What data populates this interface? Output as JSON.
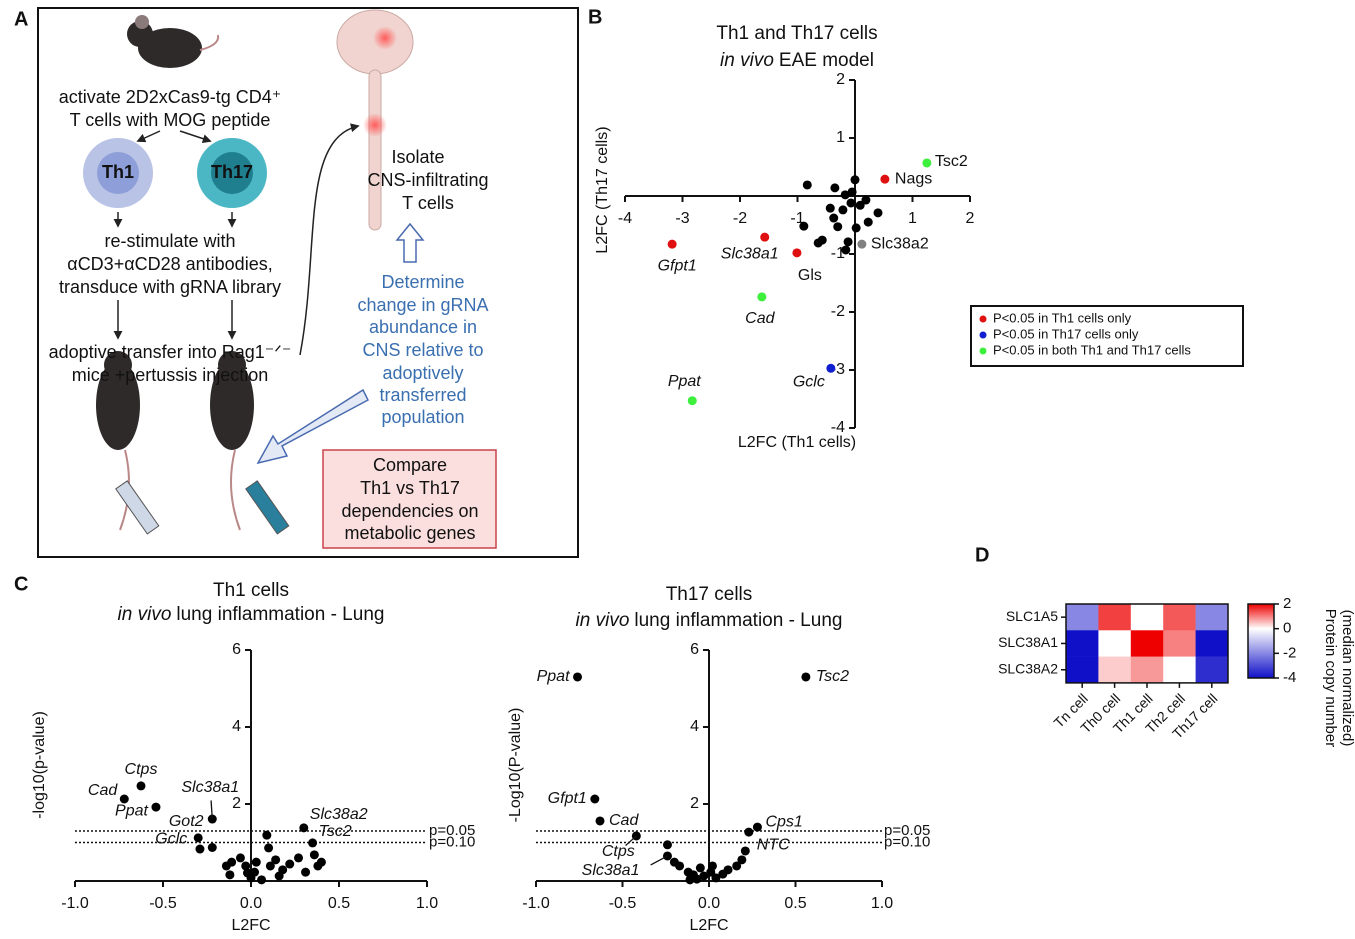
{
  "panel_labels": [
    "A",
    "B",
    "C",
    "D"
  ],
  "diagram": {
    "activate": [
      "activate 2D2xCas9-tg CD4⁺",
      "T cells with MOG peptide"
    ],
    "cells": [
      "Th1",
      "Th17"
    ],
    "restimulate": [
      "re-stimulate with",
      "αCD3+αCD28 antibodies,",
      "transduce with gRNA library"
    ],
    "transfer": [
      "adoptive transfer into Rag1⁻ᐟ⁻",
      "mice +pertussis injection"
    ],
    "isolate": [
      "Isolate",
      "CNS-infiltrating",
      "T cells"
    ],
    "determine": [
      "Determine",
      "change in gRNA",
      "abundance in",
      "CNS relative to",
      "adoptively",
      "transferred",
      "population"
    ],
    "compare": [
      "Compare",
      "Th1 vs Th17",
      "dependencies on",
      "metabolic genes"
    ]
  },
  "chart_data": [
    {
      "type": "scatter",
      "title": "Th1 and Th17 cells",
      "subtitle": [
        {
          "text": "in vivo",
          "italic": true
        },
        {
          "text": "EAE model",
          "italic": false
        }
      ],
      "x_label": "L2FC (Th1 cells)",
      "y_label": "L2FC (Th17 cells)",
      "xlim": [
        -4,
        2
      ],
      "ylim": [
        -4,
        2
      ],
      "xticks": [
        -4,
        -3,
        -2,
        -1,
        1,
        2
      ],
      "yticks": [
        2,
        1,
        -1,
        -2,
        -3,
        -4
      ],
      "series": [
        {
          "color": "#000000",
          "x": [
            -0.83,
            -0.35,
            -0.17,
            -0.07,
            0.09,
            0.19,
            0.4,
            0.0,
            -0.21,
            -0.37,
            -0.3,
            -0.57,
            -0.64,
            -0.89,
            -0.12,
            0.02,
            0.23,
            -0.43,
            -0.16,
            -0.05
          ],
          "y": [
            0.19,
            0.14,
            0.02,
            -0.12,
            -0.16,
            -0.07,
            -0.29,
            0.28,
            -0.24,
            -0.38,
            -0.53,
            -0.76,
            -0.81,
            -0.52,
            -0.79,
            -0.55,
            -0.45,
            -0.21,
            -0.93,
            0.07
          ]
        },
        {
          "color": "#808080",
          "x": [
            0.12
          ],
          "y": [
            -0.83
          ],
          "labels": [
            "Slc38a2"
          ],
          "italic": [
            false
          ]
        },
        {
          "name": "P<0.05 in Th1 cells only",
          "color": "#e01010",
          "x": [
            0.52,
            -3.18,
            -1.57,
            -1.01
          ],
          "y": [
            0.29,
            -0.83,
            -0.71,
            -0.98
          ],
          "labels": [
            "Nags",
            "Gfpt1",
            "Slc38a1",
            "Gls"
          ],
          "italic": [
            false,
            true,
            true,
            false
          ]
        },
        {
          "name": "P<0.05 in Th17 cells only",
          "color": "#1020d0",
          "x": [
            -0.42
          ],
          "y": [
            -2.97
          ],
          "labels": [
            "Gclc"
          ],
          "italic": [
            true
          ]
        },
        {
          "name": "P<0.05 in both Th1 and Th17 cells",
          "color": "#3cf03c",
          "x": [
            1.25,
            -1.62,
            -2.83
          ],
          "y": [
            0.57,
            -1.74,
            -3.53
          ],
          "labels": [
            "Tsc2",
            "Cad",
            "Ppat"
          ],
          "italic": [
            false,
            true,
            true
          ]
        }
      ]
    },
    {
      "type": "scatter",
      "title": "Th1 cells",
      "subtitle": [
        {
          "text": "in vivo",
          "italic": true
        },
        {
          "text": "lung inflammation - Lung",
          "italic": false
        }
      ],
      "x_label": "L2FC",
      "y_label": "-log10(p-value)",
      "xlim": [
        -1,
        1
      ],
      "ylim": [
        0,
        6
      ],
      "xticks": [
        {
          "value": -1,
          "label": "-1.0"
        },
        -0.5,
        {
          "value": 0,
          "label": "0.0"
        },
        0.5,
        {
          "value": 1,
          "label": "1.0"
        }
      ],
      "yticks": [
        2,
        4,
        6
      ],
      "hlines": [
        {
          "value": 1.3,
          "label": "p=0.05"
        },
        {
          "value": 1,
          "label": "p=0.10"
        }
      ],
      "series": [
        {
          "color": "#000000",
          "x": [
            -0.625,
            -0.72,
            -0.54,
            -0.22,
            -0.3,
            -0.22,
            0.3,
            0.35,
            -0.14,
            -0.11,
            -0.06,
            -0.02,
            0.0,
            0.02,
            0.06,
            0.11,
            0.14,
            0.18,
            0.22,
            0.27,
            0.31,
            0.4,
            0.38,
            0.36,
            0.09,
            0.1,
            -0.29,
            -0.03,
            0.16,
            0.03,
            -0.12
          ],
          "y": [
            2.47,
            2.13,
            1.92,
            1.61,
            1.12,
            0.87,
            1.38,
            0.99,
            0.39,
            0.49,
            0.6,
            0.21,
            0.08,
            0.23,
            0.03,
            0.39,
            0.55,
            0.29,
            0.44,
            0.6,
            0.23,
            0.49,
            0.39,
            0.68,
            1.19,
            0.86,
            0.83,
            0.39,
            0.13,
            0.49,
            0.16
          ],
          "labels": [
            "Ctps",
            "Cad",
            "Ppat",
            "Slc38a1",
            "Got2",
            "Gclc",
            "Slc38a2",
            "Tsc2",
            null,
            null,
            null,
            null,
            null,
            null,
            null,
            null,
            null,
            null,
            null,
            null,
            null,
            null,
            null,
            null,
            null,
            null,
            null,
            null,
            null,
            null,
            null
          ],
          "italic": true
        }
      ]
    },
    {
      "type": "scatter",
      "title": "Th17 cells",
      "subtitle": [
        {
          "text": "in vivo",
          "italic": true
        },
        {
          "text": "lung inflammation - Lung",
          "italic": false
        }
      ],
      "x_label": "L2FC",
      "y_label": "-Log10(P-value)",
      "xlim": [
        -1,
        1
      ],
      "ylim": [
        0,
        6
      ],
      "xticks": [
        {
          "value": -1,
          "label": "-1.0"
        },
        -0.5,
        {
          "value": 0,
          "label": "0.0"
        },
        0.5,
        {
          "value": 1,
          "label": "1.0"
        }
      ],
      "yticks": [
        2,
        4,
        6
      ],
      "hlines": [
        {
          "value": 1.3,
          "label": "p=0.05"
        },
        {
          "value": 1,
          "label": "p=0.10"
        }
      ],
      "series": [
        {
          "color": "#000000",
          "x": [
            -0.76,
            0.56,
            -0.66,
            -0.63,
            -0.42,
            -0.24,
            0.28,
            0.23,
            -0.24,
            -0.2,
            -0.17,
            -0.12,
            -0.09,
            -0.07,
            -0.03,
            0.01,
            0.04,
            0.08,
            0.11,
            0.16,
            0.19,
            0.21,
            -0.05,
            -0.11,
            0.02
          ],
          "y": [
            5.3,
            5.3,
            2.13,
            1.56,
            1.17,
            0.65,
            1.4,
            1.27,
            0.94,
            0.49,
            0.39,
            0.23,
            0.16,
            0.05,
            0.13,
            0.23,
            0.08,
            0.18,
            0.29,
            0.39,
            0.55,
            0.78,
            0.34,
            0.03,
            0.39
          ],
          "labels": [
            "Ppat",
            "Tsc2",
            "Gfpt1",
            "Cad",
            "Ctps",
            "Slc38a1",
            "Cps1",
            "NTC",
            null,
            null,
            null,
            null,
            null,
            null,
            null,
            null,
            null,
            null,
            null,
            null,
            null,
            null,
            null,
            null,
            null
          ],
          "italic": true
        }
      ]
    },
    {
      "type": "heatmap",
      "rows": [
        "SLC1A5",
        "SLC38A1",
        "SLC38A2"
      ],
      "columns": [
        "Tn cell",
        "Th0 cell",
        "Th1 cell",
        "Th2 cell",
        "Th17 cell"
      ],
      "values": [
        [
          -2,
          1.5,
          0,
          1.3,
          -2
        ],
        [
          -4,
          0,
          2,
          1,
          -4
        ],
        [
          -4,
          0.4,
          0.8,
          0,
          -3.5
        ]
      ],
      "zlim": [
        -4,
        2
      ],
      "zticks": [
        2,
        0,
        -2,
        -4
      ],
      "colors": [
        "#1010c8",
        "#ffffff",
        "#ee0000"
      ],
      "colorbar_label": [
        "Protein copy number",
        "(median normalized)"
      ]
    }
  ]
}
